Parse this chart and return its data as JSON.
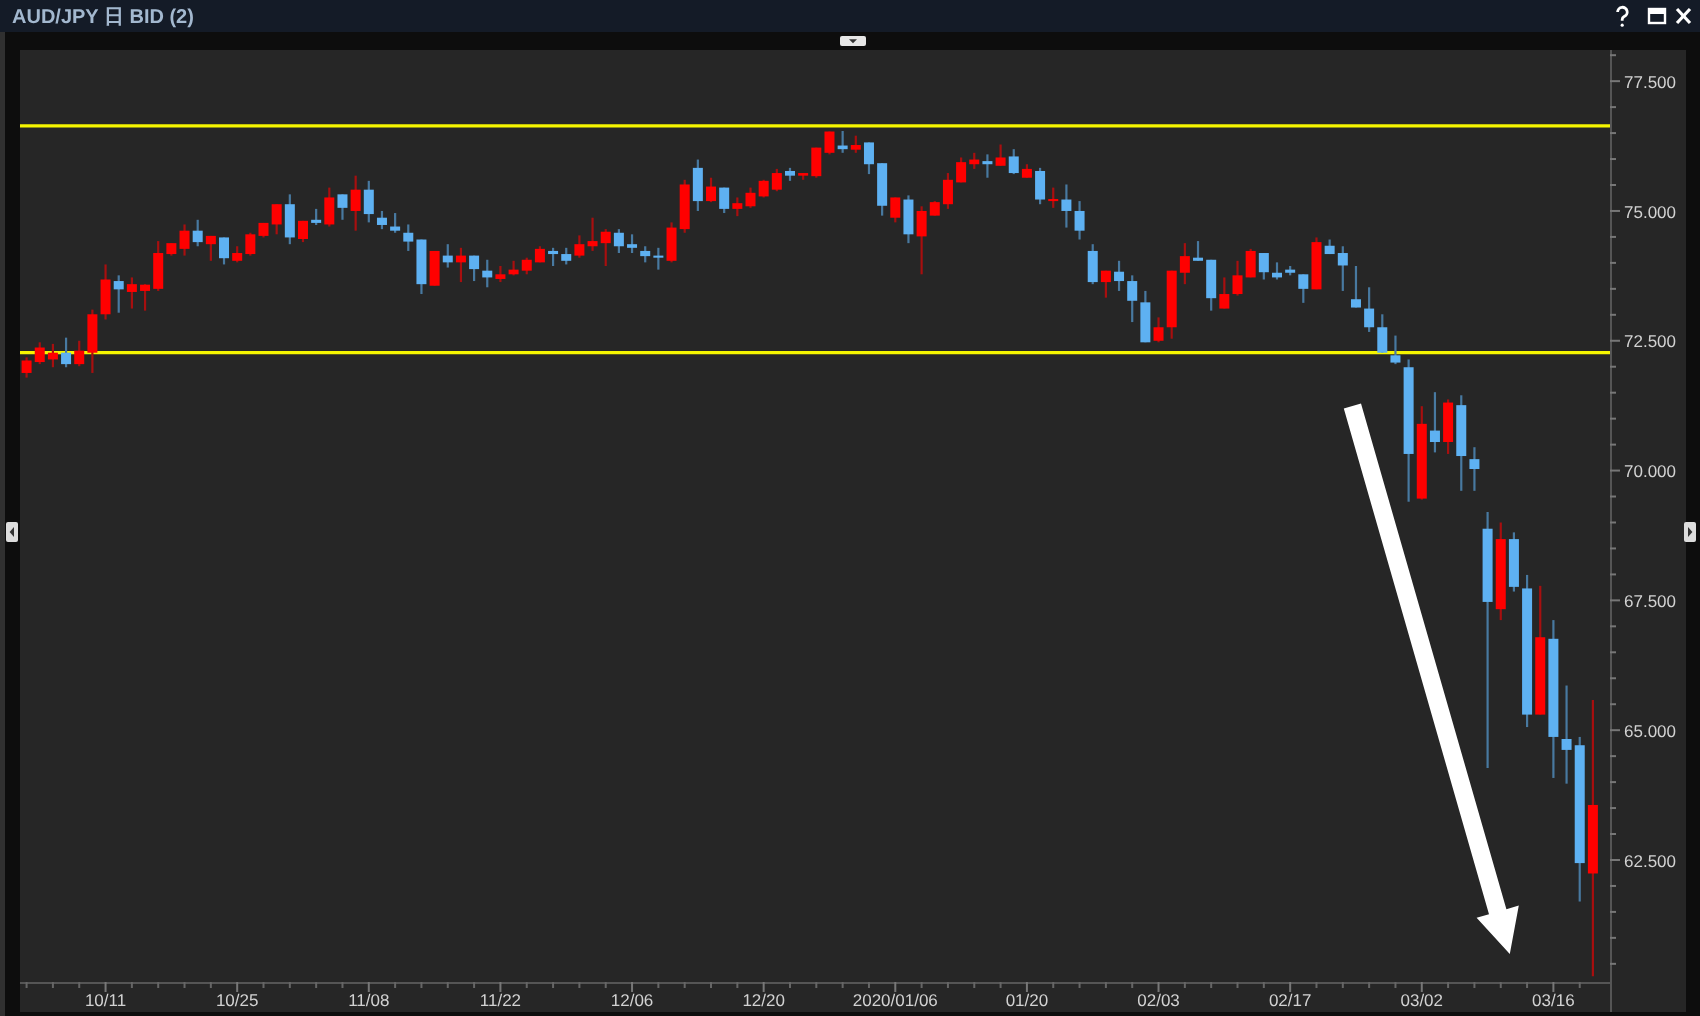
{
  "chart_data": {
    "type": "candlestick",
    "title": "AUD/JPY 日 BID (2)",
    "categories": [
      null,
      null,
      null,
      null,
      null,
      null,
      "10/11",
      null,
      null,
      null,
      null,
      null,
      null,
      null,
      null,
      null,
      "10/25",
      null,
      null,
      null,
      null,
      null,
      null,
      null,
      null,
      null,
      "11/08",
      null,
      null,
      null,
      null,
      null,
      null,
      null,
      null,
      null,
      "11/22",
      null,
      null,
      null,
      null,
      null,
      null,
      null,
      null,
      null,
      "12/06",
      null,
      null,
      null,
      null,
      null,
      null,
      null,
      null,
      null,
      "12/20",
      null,
      null,
      null,
      null,
      null,
      null,
      null,
      null,
      null,
      "2020/01/06",
      null,
      null,
      null,
      null,
      null,
      null,
      null,
      null,
      null,
      "01/20",
      null,
      null,
      null,
      null,
      null,
      null,
      null,
      null,
      null,
      "02/03",
      null,
      null,
      null,
      null,
      null,
      null,
      null,
      null,
      null,
      "02/17",
      null,
      null,
      null,
      null,
      null,
      null,
      null,
      null,
      null,
      "03/02",
      null,
      null,
      null,
      null,
      null,
      null,
      null,
      null,
      null,
      "03/16",
      null,
      null,
      null
    ],
    "ohlc": [
      [
        71.88,
        72.18,
        71.79,
        72.12
      ],
      [
        72.09,
        72.47,
        72.05,
        72.37
      ],
      [
        72.14,
        72.44,
        71.99,
        72.27
      ],
      [
        72.27,
        72.56,
        71.99,
        72.05
      ],
      [
        72.05,
        72.5,
        72.01,
        72.31
      ],
      [
        72.27,
        73.1,
        71.88,
        73.01
      ],
      [
        73.01,
        73.97,
        72.91,
        73.68
      ],
      [
        73.65,
        73.76,
        73.04,
        73.49
      ],
      [
        73.44,
        73.72,
        73.12,
        73.59
      ],
      [
        73.46,
        73.59,
        73.08,
        73.58
      ],
      [
        73.5,
        74.42,
        73.46,
        74.19
      ],
      [
        74.17,
        74.38,
        74.14,
        74.38
      ],
      [
        74.27,
        74.74,
        74.14,
        74.62
      ],
      [
        74.62,
        74.83,
        74.32,
        74.4
      ],
      [
        74.36,
        74.52,
        74.04,
        74.52
      ],
      [
        74.49,
        74.49,
        73.97,
        74.09
      ],
      [
        74.04,
        74.32,
        74.01,
        74.19
      ],
      [
        74.17,
        74.58,
        74.14,
        74.55
      ],
      [
        74.52,
        74.77,
        74.49,
        74.77
      ],
      [
        74.74,
        75.13,
        74.55,
        75.13
      ],
      [
        75.13,
        75.32,
        74.36,
        74.49
      ],
      [
        74.46,
        74.81,
        74.4,
        74.81
      ],
      [
        74.83,
        75.04,
        74.73,
        74.77
      ],
      [
        74.74,
        75.45,
        74.7,
        75.26
      ],
      [
        75.32,
        75.32,
        74.83,
        75.06
      ],
      [
        75.0,
        75.68,
        74.62,
        75.41
      ],
      [
        75.41,
        75.58,
        74.78,
        74.94
      ],
      [
        74.87,
        75.0,
        74.65,
        74.73
      ],
      [
        74.7,
        74.96,
        74.58,
        74.62
      ],
      [
        74.58,
        74.74,
        74.23,
        74.41
      ],
      [
        74.45,
        74.45,
        73.4,
        73.59
      ],
      [
        73.56,
        74.23,
        73.56,
        74.23
      ],
      [
        74.14,
        74.36,
        73.91,
        74.01
      ],
      [
        74.01,
        74.29,
        73.63,
        74.14
      ],
      [
        74.14,
        74.14,
        73.65,
        73.88
      ],
      [
        73.85,
        74.06,
        73.53,
        73.72
      ],
      [
        73.69,
        73.94,
        73.63,
        73.78
      ],
      [
        73.78,
        74.04,
        73.76,
        73.87
      ],
      [
        73.85,
        74.1,
        73.78,
        74.06
      ],
      [
        74.01,
        74.32,
        74.01,
        74.27
      ],
      [
        74.23,
        74.29,
        73.94,
        74.17
      ],
      [
        74.17,
        74.29,
        73.97,
        74.04
      ],
      [
        74.14,
        74.53,
        74.1,
        74.36
      ],
      [
        74.32,
        74.87,
        74.23,
        74.42
      ],
      [
        74.38,
        74.65,
        73.94,
        74.6
      ],
      [
        74.58,
        74.65,
        74.19,
        74.32
      ],
      [
        74.36,
        74.55,
        74.19,
        74.29
      ],
      [
        74.23,
        74.32,
        74.01,
        74.13
      ],
      [
        74.14,
        74.29,
        73.87,
        74.1
      ],
      [
        74.04,
        74.78,
        74.01,
        74.68
      ],
      [
        74.65,
        75.6,
        74.58,
        75.51
      ],
      [
        75.83,
        75.99,
        75.0,
        75.19
      ],
      [
        75.19,
        75.64,
        75.17,
        75.47
      ],
      [
        75.45,
        75.45,
        74.96,
        75.04
      ],
      [
        75.04,
        75.26,
        74.9,
        75.15
      ],
      [
        75.09,
        75.45,
        75.06,
        75.35
      ],
      [
        75.28,
        75.6,
        75.26,
        75.58
      ],
      [
        75.41,
        75.81,
        75.38,
        75.73
      ],
      [
        75.77,
        75.83,
        75.58,
        75.68
      ],
      [
        75.68,
        75.73,
        75.6,
        75.73
      ],
      [
        75.67,
        76.22,
        75.64,
        76.22
      ],
      [
        76.12,
        76.53,
        76.09,
        76.53
      ],
      [
        76.26,
        76.54,
        76.12,
        76.19
      ],
      [
        76.18,
        76.45,
        76.12,
        76.27
      ],
      [
        76.32,
        76.32,
        75.71,
        75.9
      ],
      [
        75.92,
        75.92,
        74.91,
        75.1
      ],
      [
        74.87,
        75.26,
        74.78,
        75.26
      ],
      [
        75.22,
        75.3,
        74.38,
        74.55
      ],
      [
        74.51,
        75.09,
        73.78,
        75.0
      ],
      [
        74.91,
        75.19,
        74.91,
        75.17
      ],
      [
        75.13,
        75.73,
        75.04,
        75.6
      ],
      [
        75.55,
        76.03,
        75.55,
        75.94
      ],
      [
        75.9,
        76.12,
        75.81,
        75.99
      ],
      [
        75.96,
        76.09,
        75.64,
        75.9
      ],
      [
        75.87,
        76.28,
        75.87,
        76.03
      ],
      [
        76.05,
        76.19,
        75.71,
        75.73
      ],
      [
        75.64,
        75.9,
        75.64,
        75.81
      ],
      [
        75.77,
        75.83,
        75.13,
        75.22
      ],
      [
        75.19,
        75.45,
        75.06,
        75.23
      ],
      [
        75.22,
        75.51,
        74.68,
        75.0
      ],
      [
        75.0,
        75.19,
        74.45,
        74.62
      ],
      [
        74.23,
        74.36,
        73.59,
        73.63
      ],
      [
        73.63,
        73.85,
        73.33,
        73.85
      ],
      [
        73.83,
        74.04,
        73.46,
        73.65
      ],
      [
        73.65,
        73.76,
        72.86,
        73.27
      ],
      [
        73.24,
        73.46,
        72.47,
        72.47
      ],
      [
        72.5,
        72.95,
        72.47,
        72.76
      ],
      [
        72.76,
        73.85,
        72.54,
        73.85
      ],
      [
        73.81,
        74.38,
        73.59,
        74.13
      ],
      [
        74.1,
        74.42,
        74.04,
        74.04
      ],
      [
        74.06,
        74.06,
        73.08,
        73.32
      ],
      [
        73.12,
        73.72,
        73.12,
        73.4
      ],
      [
        73.4,
        74.04,
        73.37,
        73.76
      ],
      [
        73.72,
        74.27,
        73.72,
        74.23
      ],
      [
        74.19,
        74.19,
        73.68,
        73.82
      ],
      [
        73.81,
        74.01,
        73.68,
        73.72
      ],
      [
        73.87,
        73.94,
        73.76,
        73.81
      ],
      [
        73.78,
        73.78,
        73.23,
        73.5
      ],
      [
        73.49,
        74.49,
        73.49,
        74.4
      ],
      [
        74.33,
        74.45,
        74.17,
        74.17
      ],
      [
        74.19,
        74.32,
        73.46,
        73.95
      ],
      [
        73.3,
        73.94,
        73.14,
        73.14
      ],
      [
        73.12,
        73.53,
        72.67,
        72.76
      ],
      [
        72.76,
        73.01,
        72.27,
        72.27
      ],
      [
        72.22,
        72.6,
        72.05,
        72.08
      ],
      [
        71.99,
        72.14,
        69.4,
        70.32
      ],
      [
        69.46,
        71.24,
        69.44,
        70.9
      ],
      [
        70.77,
        71.51,
        70.35,
        70.55
      ],
      [
        70.55,
        71.37,
        70.32,
        71.31
      ],
      [
        71.26,
        71.45,
        69.61,
        70.28
      ],
      [
        70.22,
        70.45,
        69.61,
        70.03
      ],
      [
        68.88,
        69.2,
        64.27,
        67.47
      ],
      [
        67.33,
        69.0,
        67.12,
        68.68
      ],
      [
        68.68,
        68.81,
        67.67,
        67.76
      ],
      [
        67.73,
        67.99,
        65.06,
        65.3
      ],
      [
        65.3,
        67.78,
        65.3,
        66.79
      ],
      [
        66.76,
        67.12,
        64.08,
        64.87
      ],
      [
        64.83,
        65.86,
        63.97,
        64.62
      ],
      [
        64.71,
        64.87,
        61.7,
        62.44
      ],
      [
        62.24,
        65.58,
        60.26,
        63.56
      ]
    ],
    "colors": [
      "#ff0000",
      "#ff0000",
      "#ff0000",
      "#5eb1f2",
      "#ff0000",
      "#ff0000",
      "#ff0000",
      "#5eb1f2",
      "#ff0000",
      "#ff0000",
      "#ff0000",
      "#ff0000",
      "#ff0000",
      "#5eb1f2",
      "#ff0000",
      "#5eb1f2",
      "#ff0000",
      "#ff0000",
      "#ff0000",
      "#ff0000",
      "#5eb1f2",
      "#ff0000",
      "#5eb1f2",
      "#ff0000",
      "#5eb1f2",
      "#ff0000",
      "#5eb1f2",
      "#5eb1f2",
      "#5eb1f2",
      "#5eb1f2",
      "#5eb1f2",
      "#ff0000",
      "#5eb1f2",
      "#ff0000",
      "#5eb1f2",
      "#5eb1f2",
      "#ff0000",
      "#ff0000",
      "#ff0000",
      "#ff0000",
      "#5eb1f2",
      "#5eb1f2",
      "#ff0000",
      "#ff0000",
      "#ff0000",
      "#5eb1f2",
      "#5eb1f2",
      "#5eb1f2",
      "#5eb1f2",
      "#ff0000",
      "#ff0000",
      "#5eb1f2",
      "#ff0000",
      "#5eb1f2",
      "#ff0000",
      "#ff0000",
      "#ff0000",
      "#ff0000",
      "#5eb1f2",
      "#ff0000",
      "#ff0000",
      "#ff0000",
      "#5eb1f2",
      "#ff0000",
      "#5eb1f2",
      "#5eb1f2",
      "#ff0000",
      "#5eb1f2",
      "#ff0000",
      "#ff0000",
      "#ff0000",
      "#ff0000",
      "#ff0000",
      "#5eb1f2",
      "#ff0000",
      "#5eb1f2",
      "#ff0000",
      "#5eb1f2",
      "#ff0000",
      "#5eb1f2",
      "#5eb1f2",
      "#5eb1f2",
      "#ff0000",
      "#5eb1f2",
      "#5eb1f2",
      "#5eb1f2",
      "#ff0000",
      "#ff0000",
      "#ff0000",
      "#5eb1f2",
      "#5eb1f2",
      "#ff0000",
      "#ff0000",
      "#ff0000",
      "#5eb1f2",
      "#5eb1f2",
      "#5eb1f2",
      "#5eb1f2",
      "#ff0000",
      "#5eb1f2",
      "#5eb1f2",
      "#5eb1f2",
      "#5eb1f2",
      "#5eb1f2",
      "#5eb1f2",
      "#5eb1f2",
      "#ff0000",
      "#5eb1f2",
      "#ff0000",
      "#5eb1f2",
      "#5eb1f2",
      "#5eb1f2",
      "#ff0000",
      "#5eb1f2",
      "#5eb1f2",
      "#ff0000",
      "#5eb1f2",
      "#5eb1f2",
      "#5eb1f2",
      "#ff0000"
    ],
    "ylim": [
      60.15,
      78.1
    ],
    "yticks": [
      {
        "value": 60.5,
        "label": null
      },
      {
        "value": 61.0,
        "label": null
      },
      {
        "value": 61.5,
        "label": null
      },
      {
        "value": 62.0,
        "label": null
      },
      {
        "value": 62.5,
        "label": "62.500"
      },
      {
        "value": 63.0,
        "label": null
      },
      {
        "value": 63.5,
        "label": null
      },
      {
        "value": 64.0,
        "label": null
      },
      {
        "value": 64.5,
        "label": null
      },
      {
        "value": 65.0,
        "label": "65.000"
      },
      {
        "value": 65.5,
        "label": null
      },
      {
        "value": 66.0,
        "label": null
      },
      {
        "value": 66.5,
        "label": null
      },
      {
        "value": 67.0,
        "label": null
      },
      {
        "value": 67.5,
        "label": "67.500"
      },
      {
        "value": 68.0,
        "label": null
      },
      {
        "value": 68.5,
        "label": null
      },
      {
        "value": 69.0,
        "label": null
      },
      {
        "value": 69.5,
        "label": null
      },
      {
        "value": 70.0,
        "label": "70.000"
      },
      {
        "value": 70.5,
        "label": null
      },
      {
        "value": 71.0,
        "label": null
      },
      {
        "value": 71.5,
        "label": null
      },
      {
        "value": 72.0,
        "label": null
      },
      {
        "value": 72.5,
        "label": "72.500"
      },
      {
        "value": 73.0,
        "label": null
      },
      {
        "value": 73.5,
        "label": null
      },
      {
        "value": 74.0,
        "label": null
      },
      {
        "value": 74.5,
        "label": null
      },
      {
        "value": 75.0,
        "label": "75.000"
      },
      {
        "value": 75.5,
        "label": null
      },
      {
        "value": 76.0,
        "label": null
      },
      {
        "value": 76.5,
        "label": null
      },
      {
        "value": 77.0,
        "label": null
      },
      {
        "value": 77.5,
        "label": "77.500"
      },
      {
        "value": 78.0,
        "label": null
      }
    ],
    "ref_lines": [
      {
        "axis": "y",
        "value": 76.64,
        "color": "#f5f500"
      },
      {
        "axis": "y",
        "value": 72.27,
        "color": "#f5f500"
      }
    ]
  }
}
